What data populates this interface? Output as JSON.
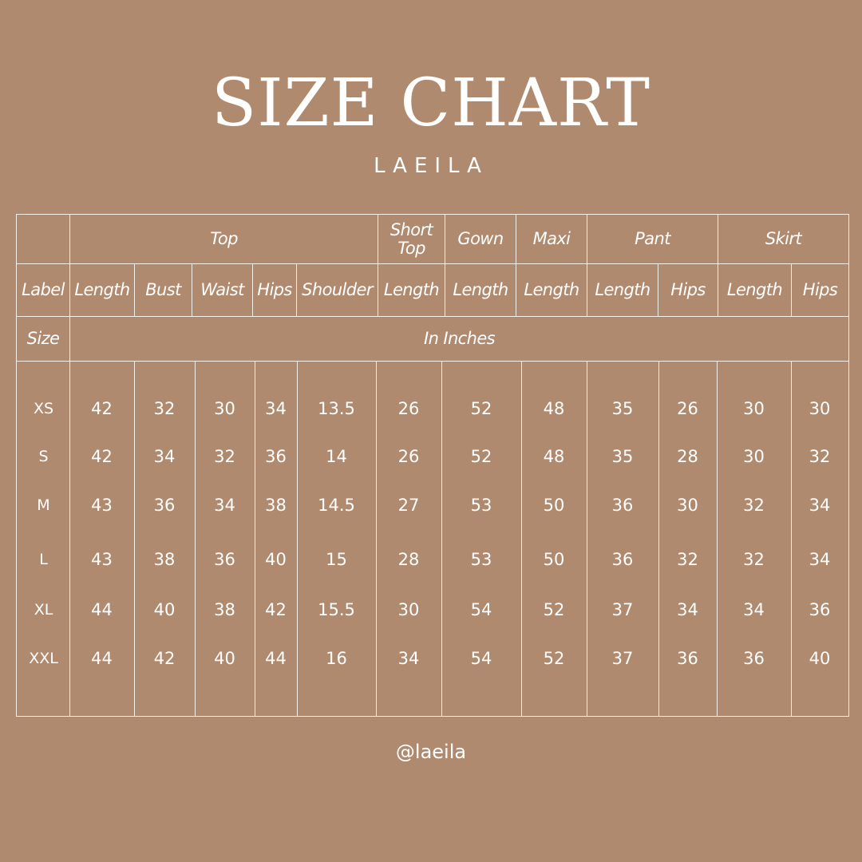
{
  "title": "SIZE CHART",
  "brand": "LAEILA",
  "handle": "@laeila",
  "colors": {
    "background": "#b08a6f",
    "foreground": "#ffffff"
  },
  "table": {
    "groups": [
      "Top",
      "Short Top",
      "Gown",
      "Maxi",
      "Pant",
      "Skirt"
    ],
    "label_header": "Label",
    "columns": [
      "Length",
      "Bust",
      "Waist",
      "Hips",
      "Shoulder",
      "Length",
      "Length",
      "Length",
      "Length",
      "Hips",
      "Length",
      "Hips"
    ],
    "size_header": "Size",
    "unit": "In Inches",
    "rows": [
      {
        "size": "XS",
        "values": [
          "42",
          "32",
          "30",
          "34",
          "13.5",
          "26",
          "52",
          "48",
          "35",
          "26",
          "30",
          "30"
        ]
      },
      {
        "size": "S",
        "values": [
          "42",
          "34",
          "32",
          "36",
          "14",
          "26",
          "52",
          "48",
          "35",
          "28",
          "30",
          "32"
        ]
      },
      {
        "size": "M",
        "values": [
          "43",
          "36",
          "34",
          "38",
          "14.5",
          "27",
          "53",
          "50",
          "36",
          "30",
          "32",
          "34"
        ]
      },
      {
        "size": "L",
        "values": [
          "43",
          "38",
          "36",
          "40",
          "15",
          "28",
          "53",
          "50",
          "36",
          "32",
          "32",
          "34"
        ]
      },
      {
        "size": "XL",
        "values": [
          "44",
          "40",
          "38",
          "42",
          "15.5",
          "30",
          "54",
          "52",
          "37",
          "34",
          "34",
          "36"
        ]
      },
      {
        "size": "XXL",
        "values": [
          "44",
          "42",
          "40",
          "44",
          "16",
          "34",
          "54",
          "52",
          "37",
          "36",
          "36",
          "40"
        ]
      }
    ]
  }
}
